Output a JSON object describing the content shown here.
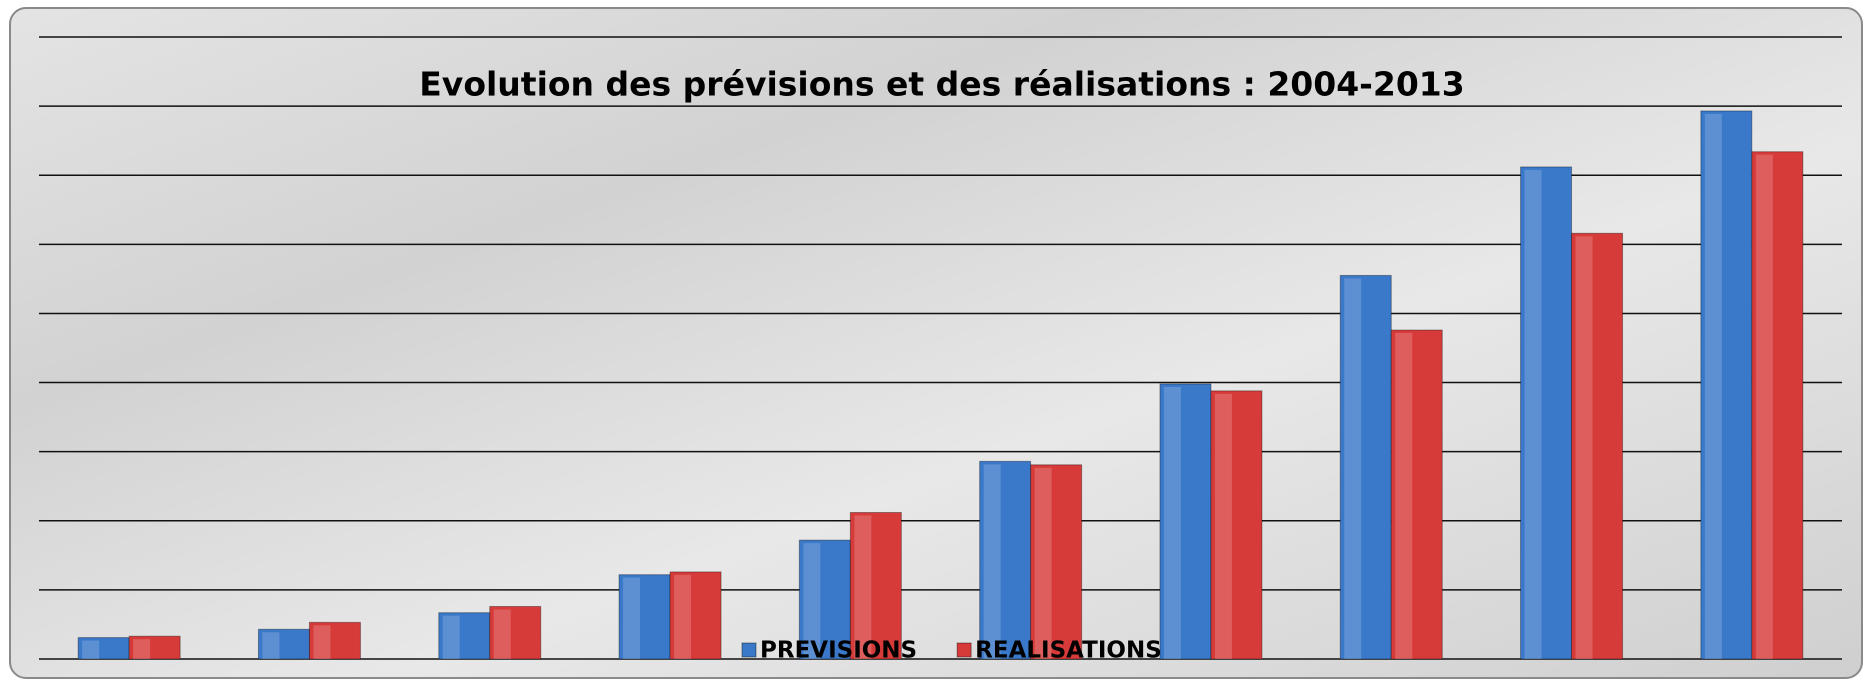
{
  "chart_data": {
    "type": "bar",
    "title": "Evolution des prévisions et des réalisations : 2004-2013",
    "categories": [
      null,
      null,
      null,
      null,
      null,
      null,
      null,
      null,
      null,
      null
    ],
    "series": [
      {
        "name": "PREVISIONS",
        "color": "#3a78c9",
        "values": [
          0.31,
          0.43,
          0.67,
          1.22,
          1.72,
          2.86,
          3.98,
          5.55,
          7.12,
          7.93
        ]
      },
      {
        "name": "REALISATIONS",
        "color": "#d63b3a",
        "values": [
          0.33,
          0.53,
          0.76,
          1.26,
          2.12,
          2.81,
          3.88,
          4.76,
          6.16,
          7.34
        ]
      }
    ],
    "ylim": [
      0,
      9
    ],
    "yticks": [
      0,
      1,
      2,
      3,
      4,
      5,
      6,
      7,
      8,
      9
    ],
    "grid": true
  }
}
